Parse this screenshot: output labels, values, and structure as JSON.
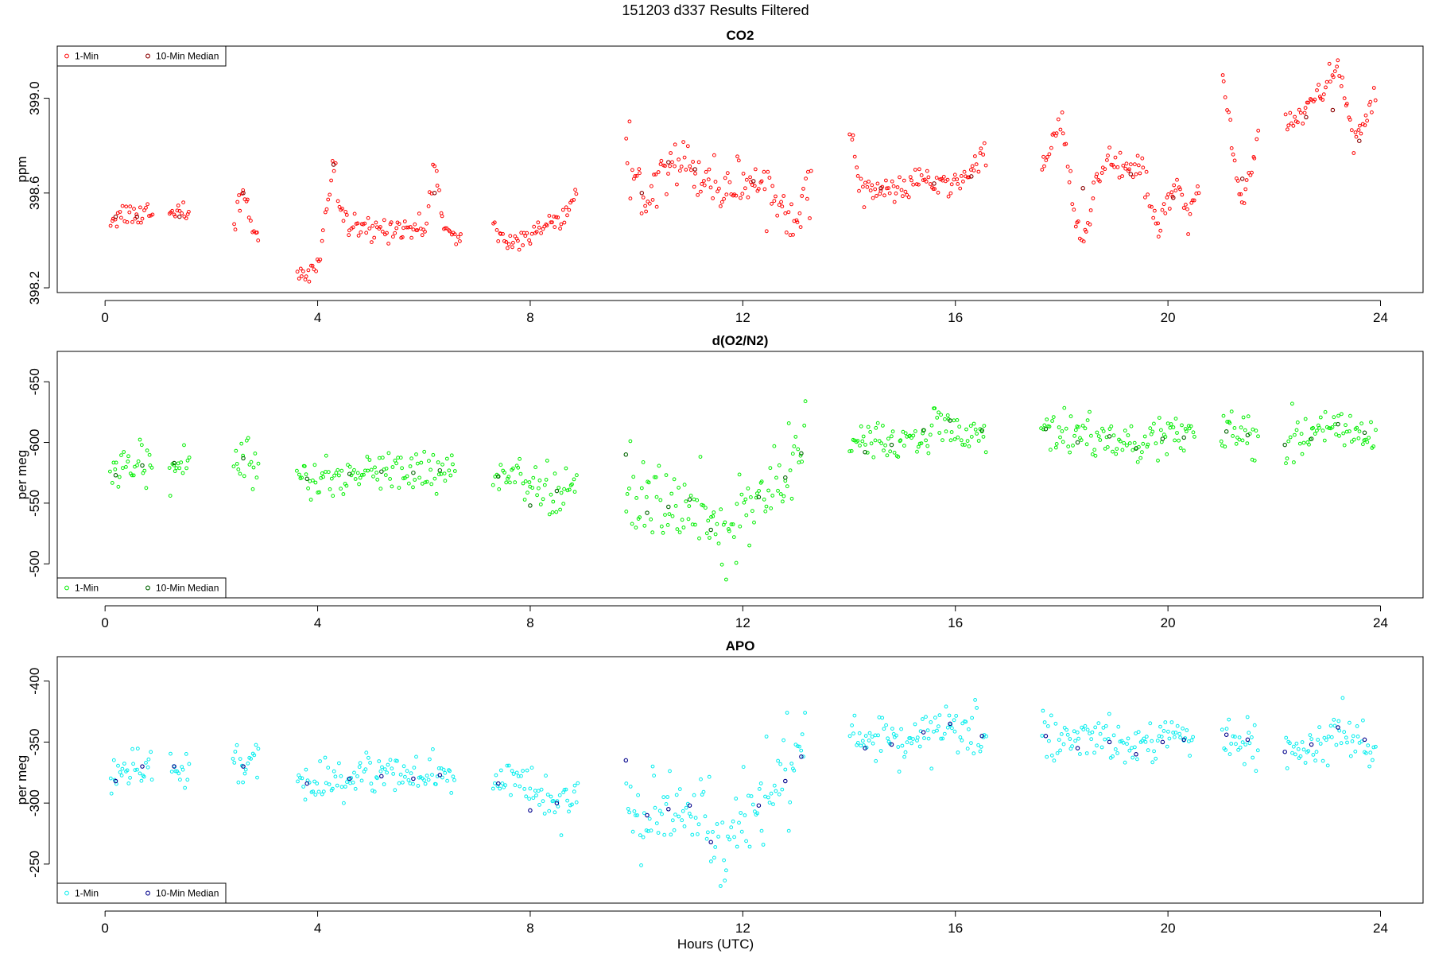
{
  "figure_title": "151203   d337   Results Filtered",
  "x_axis_label": "Hours (UTC)",
  "chart_data": [
    {
      "type": "scatter",
      "title": "CO2",
      "ylabel": "ppm",
      "xlim": [
        -0.9,
        24.8
      ],
      "ylim": [
        398.18,
        399.22
      ],
      "x_ticks": [
        0,
        4,
        8,
        12,
        16,
        20,
        24
      ],
      "y_ticks": [
        398.2,
        398.6,
        399.0
      ],
      "y_tick_labels": [
        "398.2",
        "398.6",
        "399.0"
      ],
      "legend": {
        "position": "top-left",
        "entries": [
          "1-Min",
          "10-Min Median"
        ]
      },
      "colors": {
        "one_min": "#ff0000",
        "median": "#8b0000"
      },
      "one_min_trend": [
        [
          0.1,
          398.49
        ],
        [
          0.3,
          398.51
        ],
        [
          0.5,
          398.52
        ],
        [
          0.7,
          398.5
        ],
        [
          0.9,
          398.56
        ],
        [
          1.2,
          398.5
        ],
        [
          1.5,
          398.52
        ],
        [
          2.4,
          398.45
        ],
        [
          2.6,
          398.62
        ],
        [
          2.8,
          398.45
        ],
        [
          3.6,
          398.25
        ],
        [
          3.8,
          398.24
        ],
        [
          4.0,
          398.3
        ],
        [
          4.3,
          398.72
        ],
        [
          4.4,
          398.55
        ],
        [
          4.6,
          398.45
        ],
        [
          5.0,
          398.44
        ],
        [
          5.5,
          398.46
        ],
        [
          6.0,
          398.44
        ],
        [
          6.2,
          398.72
        ],
        [
          6.4,
          398.45
        ],
        [
          6.6,
          398.39
        ],
        [
          7.3,
          398.45
        ],
        [
          7.6,
          398.39
        ],
        [
          8.0,
          398.41
        ],
        [
          8.4,
          398.48
        ],
        [
          8.7,
          398.53
        ],
        [
          8.9,
          398.56
        ],
        [
          9.8,
          398.72
        ],
        [
          10.1,
          398.6
        ],
        [
          10.4,
          398.68
        ],
        [
          10.7,
          398.76
        ],
        [
          11.0,
          398.7
        ],
        [
          11.3,
          398.68
        ],
        [
          11.6,
          398.62
        ],
        [
          12.1,
          398.66
        ],
        [
          12.4,
          398.64
        ],
        [
          12.7,
          398.55
        ],
        [
          13.0,
          398.52
        ],
        [
          13.3,
          398.63
        ],
        [
          14.0,
          398.9
        ],
        [
          14.2,
          398.64
        ],
        [
          14.6,
          398.6
        ],
        [
          15.0,
          398.62
        ],
        [
          15.4,
          398.66
        ],
        [
          15.8,
          398.62
        ],
        [
          16.2,
          398.67
        ],
        [
          16.6,
          398.78
        ],
        [
          17.6,
          398.67
        ],
        [
          17.8,
          398.82
        ],
        [
          18.0,
          398.92
        ],
        [
          18.2,
          398.55
        ],
        [
          18.4,
          398.35
        ],
        [
          18.6,
          398.62
        ],
        [
          18.9,
          398.74
        ],
        [
          19.2,
          398.68
        ],
        [
          19.5,
          398.73
        ],
        [
          19.8,
          398.45
        ],
        [
          20.0,
          398.55
        ],
        [
          20.2,
          398.65
        ],
        [
          20.4,
          398.48
        ],
        [
          20.6,
          398.68
        ],
        [
          21.0,
          399.15
        ],
        [
          21.2,
          398.8
        ],
        [
          21.4,
          398.55
        ],
        [
          21.7,
          398.86
        ],
        [
          22.2,
          398.9
        ],
        [
          22.6,
          398.95
        ],
        [
          22.9,
          399.02
        ],
        [
          23.2,
          399.15
        ],
        [
          23.5,
          398.82
        ],
        [
          23.9,
          398.98
        ]
      ],
      "one_min_gaps": [
        [
          0.9,
          1.2
        ],
        [
          1.6,
          2.4
        ],
        [
          2.9,
          3.6
        ],
        [
          6.7,
          7.3
        ],
        [
          8.9,
          9.8
        ],
        [
          13.3,
          14.0
        ],
        [
          16.6,
          17.6
        ],
        [
          20.6,
          21.0
        ],
        [
          21.7,
          22.2
        ]
      ],
      "one_min_spread": 0.05,
      "median_points": [
        [
          0.2,
          398.5
        ],
        [
          0.6,
          398.5
        ],
        [
          1.4,
          398.5
        ],
        [
          2.6,
          398.6
        ],
        [
          4.3,
          398.72
        ],
        [
          6.2,
          398.6
        ],
        [
          10.1,
          398.6
        ],
        [
          10.6,
          398.73
        ],
        [
          11.1,
          398.7
        ],
        [
          12.2,
          398.65
        ],
        [
          14.6,
          398.62
        ],
        [
          15.6,
          398.64
        ],
        [
          16.3,
          398.67
        ],
        [
          18.4,
          398.62
        ],
        [
          19.3,
          398.68
        ],
        [
          20.1,
          398.58
        ],
        [
          21.4,
          398.66
        ],
        [
          22.6,
          398.92
        ],
        [
          23.1,
          398.95
        ],
        [
          23.6,
          398.82
        ]
      ]
    },
    {
      "type": "scatter",
      "title": "d(O2/N2)",
      "ylabel": "per meg",
      "xlim": [
        -0.9,
        24.8
      ],
      "ylim": [
        -675,
        -472
      ],
      "y_reversed": true,
      "x_ticks": [
        0,
        4,
        8,
        12,
        16,
        20,
        24
      ],
      "y_ticks": [
        -500,
        -550,
        -600,
        -650
      ],
      "y_tick_labels": [
        "-500",
        "-550",
        "-600",
        "-650"
      ],
      "legend": {
        "position": "bottom-left",
        "entries": [
          "1-Min",
          "10-Min Median"
        ]
      },
      "colors": {
        "one_min": "#00ee00",
        "median": "#006400"
      },
      "one_min_trend": [
        [
          0.1,
          -576
        ],
        [
          0.5,
          -580
        ],
        [
          0.9,
          -585
        ],
        [
          1.2,
          -584
        ],
        [
          1.6,
          -582
        ],
        [
          2.4,
          -584
        ],
        [
          2.9,
          -584
        ],
        [
          3.6,
          -570
        ],
        [
          4.3,
          -573
        ],
        [
          5.0,
          -577
        ],
        [
          5.8,
          -578
        ],
        [
          6.6,
          -575
        ],
        [
          7.3,
          -570
        ],
        [
          7.8,
          -572
        ],
        [
          8.2,
          -560
        ],
        [
          8.6,
          -558
        ],
        [
          8.9,
          -565
        ],
        [
          9.8,
          -560
        ],
        [
          10.3,
          -545
        ],
        [
          10.8,
          -552
        ],
        [
          11.3,
          -535
        ],
        [
          11.7,
          -528
        ],
        [
          12.1,
          -548
        ],
        [
          12.5,
          -566
        ],
        [
          12.9,
          -585
        ],
        [
          13.2,
          -602
        ],
        [
          14.0,
          -600
        ],
        [
          14.5,
          -602
        ],
        [
          15.0,
          -598
        ],
        [
          15.5,
          -610
        ],
        [
          16.0,
          -612
        ],
        [
          16.6,
          -606
        ],
        [
          17.6,
          -612
        ],
        [
          18.2,
          -606
        ],
        [
          18.8,
          -602
        ],
        [
          19.5,
          -602
        ],
        [
          20.0,
          -606
        ],
        [
          20.5,
          -606
        ],
        [
          21.0,
          -608
        ],
        [
          21.7,
          -604
        ],
        [
          22.2,
          -606
        ],
        [
          22.8,
          -604
        ],
        [
          23.3,
          -614
        ],
        [
          23.9,
          -600
        ]
      ],
      "one_min_gaps": [
        [
          0.9,
          1.2
        ],
        [
          1.6,
          2.4
        ],
        [
          2.9,
          3.6
        ],
        [
          6.6,
          7.3
        ],
        [
          8.9,
          9.8
        ],
        [
          13.2,
          14.0
        ],
        [
          16.6,
          17.6
        ],
        [
          20.5,
          21.0
        ],
        [
          21.7,
          22.2
        ]
      ],
      "one_min_spread": 16,
      "median_points": [
        [
          0.2,
          -573
        ],
        [
          0.7,
          -581
        ],
        [
          1.3,
          -583
        ],
        [
          2.6,
          -587
        ],
        [
          3.8,
          -570
        ],
        [
          4.6,
          -574
        ],
        [
          5.2,
          -576
        ],
        [
          5.8,
          -575
        ],
        [
          6.3,
          -577
        ],
        [
          7.4,
          -572
        ],
        [
          8.0,
          -548
        ],
        [
          8.5,
          -560
        ],
        [
          9.8,
          -590
        ],
        [
          10.2,
          -542
        ],
        [
          10.6,
          -547
        ],
        [
          11.0,
          -553
        ],
        [
          11.4,
          -528
        ],
        [
          12.3,
          -555
        ],
        [
          12.8,
          -571
        ],
        [
          13.1,
          -591
        ],
        [
          14.3,
          -592
        ],
        [
          14.8,
          -598
        ],
        [
          15.4,
          -610
        ],
        [
          15.9,
          -618
        ],
        [
          16.5,
          -610
        ],
        [
          17.7,
          -611
        ],
        [
          18.3,
          -600
        ],
        [
          18.9,
          -605
        ],
        [
          19.4,
          -595
        ],
        [
          19.9,
          -603
        ],
        [
          20.3,
          -604
        ],
        [
          21.1,
          -609
        ],
        [
          21.5,
          -606
        ],
        [
          22.2,
          -598
        ],
        [
          22.7,
          -603
        ],
        [
          23.2,
          -615
        ],
        [
          23.7,
          -608
        ]
      ]
    },
    {
      "type": "scatter",
      "title": "APO",
      "ylabel": "per meg",
      "xlim": [
        -0.9,
        24.8
      ],
      "ylim": [
        -420,
        -218
      ],
      "y_reversed": true,
      "x_ticks": [
        0,
        4,
        8,
        12,
        16,
        20,
        24
      ],
      "y_ticks": [
        -250,
        -300,
        -350,
        -400
      ],
      "y_tick_labels": [
        "-250",
        "-300",
        "-350",
        "-400"
      ],
      "legend": {
        "position": "bottom-left",
        "entries": [
          "1-Min",
          "10-Min Median"
        ]
      },
      "colors": {
        "one_min": "#00eeee",
        "median": "#00008b"
      },
      "one_min_trend": [
        [
          0.1,
          -322
        ],
        [
          0.5,
          -326
        ],
        [
          0.9,
          -330
        ],
        [
          1.2,
          -330
        ],
        [
          1.6,
          -330
        ],
        [
          2.4,
          -330
        ],
        [
          2.9,
          -330
        ],
        [
          3.6,
          -318
        ],
        [
          4.3,
          -318
        ],
        [
          5.0,
          -323
        ],
        [
          5.8,
          -324
        ],
        [
          6.6,
          -322
        ],
        [
          7.3,
          -318
        ],
        [
          7.8,
          -320
        ],
        [
          8.2,
          -305
        ],
        [
          8.6,
          -303
        ],
        [
          8.9,
          -310
        ],
        [
          9.8,
          -300
        ],
        [
          10.3,
          -288
        ],
        [
          10.8,
          -295
        ],
        [
          11.3,
          -280
        ],
        [
          11.7,
          -272
        ],
        [
          12.1,
          -292
        ],
        [
          12.5,
          -312
        ],
        [
          12.9,
          -330
        ],
        [
          13.2,
          -350
        ],
        [
          14.0,
          -352
        ],
        [
          14.5,
          -352
        ],
        [
          15.0,
          -348
        ],
        [
          15.5,
          -358
        ],
        [
          16.0,
          -360
        ],
        [
          16.6,
          -355
        ],
        [
          17.6,
          -356
        ],
        [
          18.2,
          -352
        ],
        [
          18.8,
          -350
        ],
        [
          19.5,
          -348
        ],
        [
          20.0,
          -352
        ],
        [
          20.5,
          -352
        ],
        [
          21.0,
          -354
        ],
        [
          21.7,
          -350
        ],
        [
          22.2,
          -350
        ],
        [
          22.8,
          -348
        ],
        [
          23.3,
          -360
        ],
        [
          23.9,
          -346
        ]
      ],
      "one_min_gaps": [
        [
          0.9,
          1.2
        ],
        [
          1.6,
          2.4
        ],
        [
          2.9,
          3.6
        ],
        [
          6.6,
          7.3
        ],
        [
          8.9,
          9.8
        ],
        [
          13.2,
          14.0
        ],
        [
          16.6,
          17.6
        ],
        [
          20.5,
          21.0
        ],
        [
          21.7,
          22.2
        ]
      ],
      "one_min_spread": 16,
      "median_points": [
        [
          0.2,
          -318
        ],
        [
          0.7,
          -330
        ],
        [
          1.3,
          -330
        ],
        [
          2.6,
          -330
        ],
        [
          3.8,
          -316
        ],
        [
          4.6,
          -320
        ],
        [
          5.2,
          -322
        ],
        [
          5.8,
          -320
        ],
        [
          6.3,
          -323
        ],
        [
          7.4,
          -316
        ],
        [
          8.0,
          -294
        ],
        [
          8.5,
          -300
        ],
        [
          9.8,
          -335
        ],
        [
          10.2,
          -290
        ],
        [
          10.6,
          -295
        ],
        [
          11.0,
          -298
        ],
        [
          11.4,
          -268
        ],
        [
          12.3,
          -298
        ],
        [
          12.8,
          -318
        ],
        [
          13.1,
          -338
        ],
        [
          14.3,
          -345
        ],
        [
          14.8,
          -348
        ],
        [
          15.4,
          -358
        ],
        [
          15.9,
          -365
        ],
        [
          16.5,
          -355
        ],
        [
          17.7,
          -355
        ],
        [
          18.3,
          -345
        ],
        [
          18.9,
          -350
        ],
        [
          19.4,
          -340
        ],
        [
          19.9,
          -350
        ],
        [
          20.3,
          -352
        ],
        [
          21.1,
          -356
        ],
        [
          21.5,
          -352
        ],
        [
          22.2,
          -342
        ],
        [
          22.7,
          -348
        ],
        [
          23.2,
          -362
        ],
        [
          23.7,
          -352
        ]
      ]
    }
  ]
}
